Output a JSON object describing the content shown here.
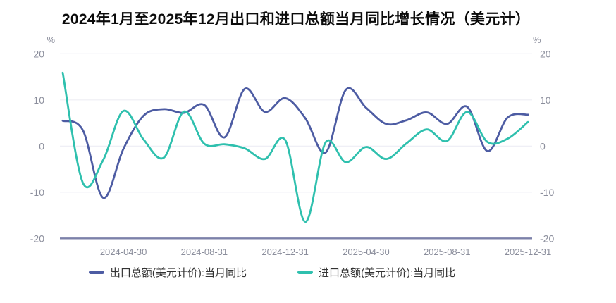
{
  "title": "2024年1月至2025年12月出口和进口总额当月同比增长情况（美元计）",
  "y_axis": {
    "unit": "%",
    "ticks": [
      20,
      10,
      0,
      -10,
      -20
    ],
    "min": -20,
    "max": 20,
    "label_color": "#8b8e9c",
    "gridline_color": "#ededf4",
    "axisline_color": "#7c81a9"
  },
  "x_axis": {
    "labels": [
      "2024-04-30",
      "2024-08-31",
      "2024-12-31",
      "2025-04-30",
      "2025-08-31",
      "2025-12-31"
    ],
    "label_color": "#8b8e9c"
  },
  "legend": [
    {
      "label": "出口总额(美元计价):当月同比",
      "color": "#4d5ca3"
    },
    {
      "label": "进口总额(美元计价):当月同比",
      "color": "#2fc0ae"
    }
  ],
  "chart_data": {
    "type": "line",
    "smooth": true,
    "grid": true,
    "legend_position": "bottom",
    "ylim": [
      -20,
      20
    ],
    "ylabel": "%",
    "x": [
      "2024-01",
      "2024-02",
      "2024-03",
      "2024-04",
      "2024-05",
      "2024-06",
      "2024-07",
      "2024-08",
      "2024-09",
      "2024-10",
      "2024-11",
      "2024-12",
      "2025-01",
      "2025-02",
      "2025-03",
      "2025-04",
      "2025-05",
      "2025-06",
      "2025-07",
      "2025-08",
      "2025-09",
      "2025-10",
      "2025-11",
      "2025-12"
    ],
    "x_tick_labels": [
      "2024-04-30",
      "2024-08-31",
      "2024-12-31",
      "2025-04-30",
      "2025-08-31",
      "2025-12-31"
    ],
    "x_tick_indices": [
      3,
      7,
      11,
      15,
      19,
      23
    ],
    "series": [
      {
        "name": "出口总额(美元计价):当月同比",
        "color": "#4d5ca3",
        "values": [
          5.5,
          3.4,
          -11.2,
          -0.6,
          6.6,
          8.0,
          7.2,
          8.9,
          1.9,
          12.4,
          7.4,
          10.4,
          6.0,
          -1.4,
          12.2,
          8.3,
          4.8,
          5.6,
          7.3,
          4.8,
          8.5,
          -1.1,
          6.2,
          6.8
        ]
      },
      {
        "name": "进口总额(美元计价):当月同比",
        "color": "#2fc0ae",
        "values": [
          15.9,
          -8.0,
          -3.0,
          7.6,
          1.4,
          -2.5,
          7.5,
          0.5,
          0.4,
          -0.5,
          -2.8,
          1.3,
          -16.4,
          0.8,
          -3.5,
          -0.2,
          -2.8,
          0.6,
          3.6,
          1.1,
          7.4,
          0.9,
          1.6,
          5.2
        ]
      }
    ]
  }
}
